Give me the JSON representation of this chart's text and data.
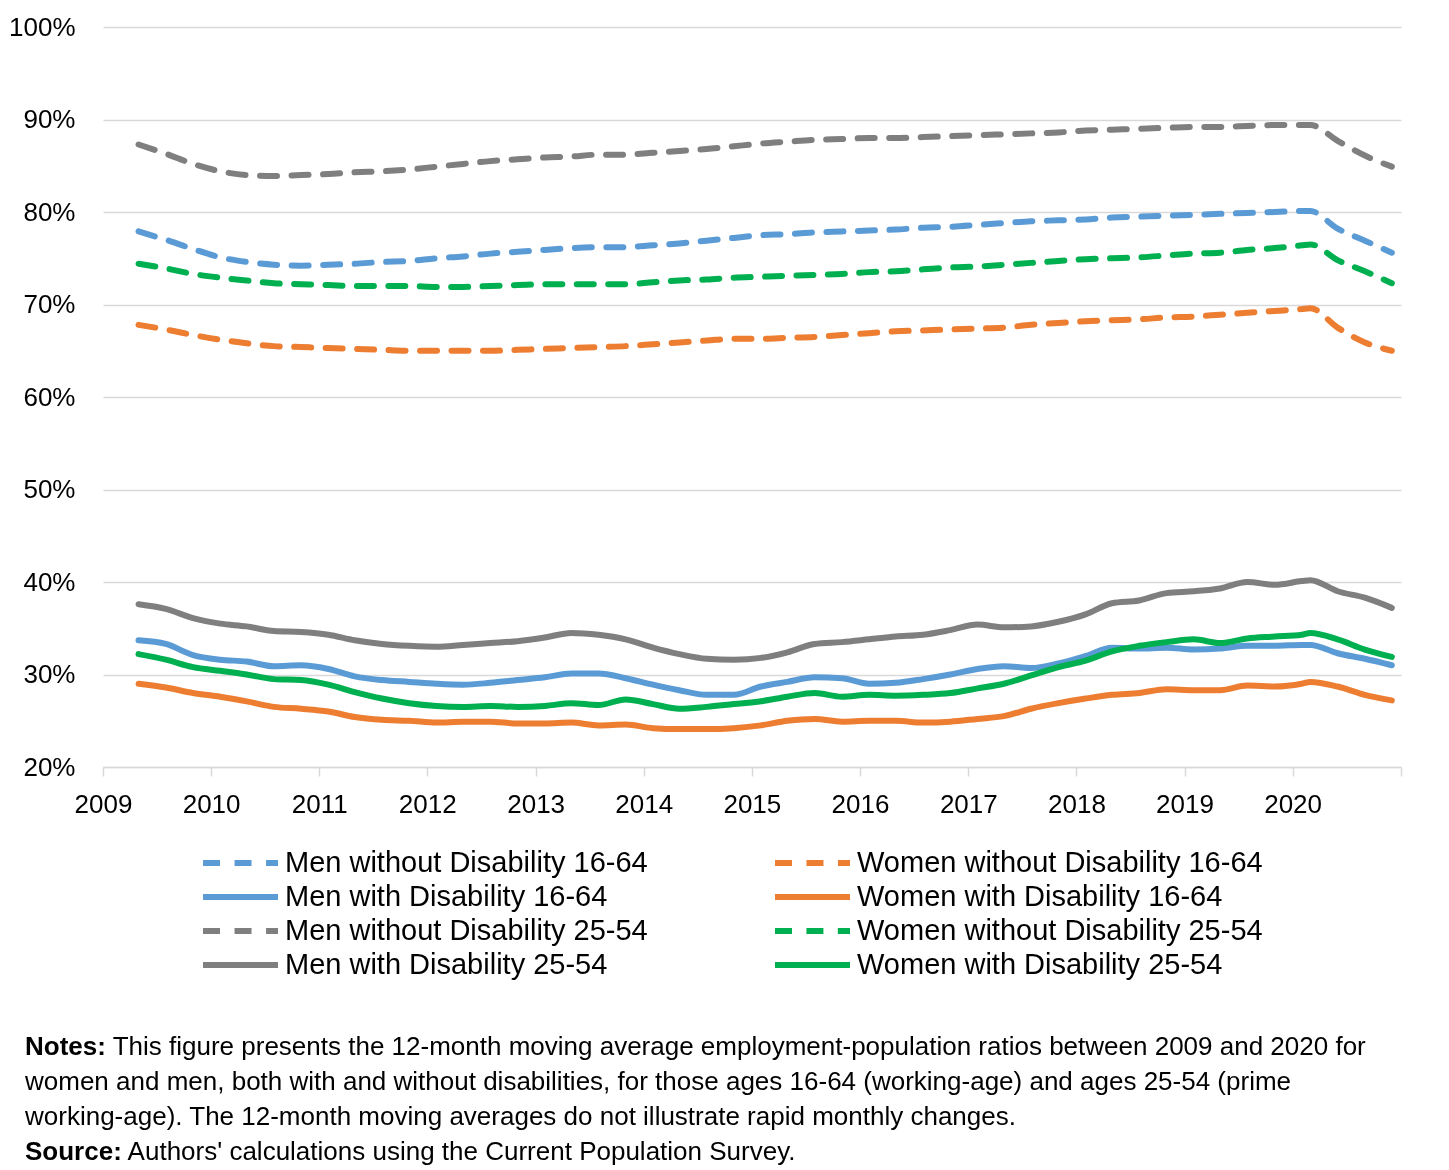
{
  "chart_data": {
    "type": "line",
    "x": [
      "2009-05",
      "2009-08",
      "2009-11",
      "2010-02",
      "2010-05",
      "2010-08",
      "2010-11",
      "2011-02",
      "2011-05",
      "2011-08",
      "2011-11",
      "2012-02",
      "2012-05",
      "2012-08",
      "2012-11",
      "2013-02",
      "2013-05",
      "2013-08",
      "2013-11",
      "2014-02",
      "2014-05",
      "2014-08",
      "2014-11",
      "2015-02",
      "2015-05",
      "2015-08",
      "2015-11",
      "2016-02",
      "2016-05",
      "2016-08",
      "2016-11",
      "2017-02",
      "2017-05",
      "2017-08",
      "2017-11",
      "2018-02",
      "2018-05",
      "2018-08",
      "2018-11",
      "2019-02",
      "2019-05",
      "2019-08",
      "2019-11",
      "2020-02",
      "2020-03",
      "2020-06",
      "2020-09",
      "2020-12"
    ],
    "series": [
      {
        "name": "Men without Disability 16-64",
        "color": "#5b9bd5",
        "line_style": "dashed",
        "values": [
          77.9,
          77.0,
          76.0,
          75.1,
          74.6,
          74.3,
          74.2,
          74.3,
          74.4,
          74.6,
          74.7,
          75.0,
          75.2,
          75.5,
          75.7,
          75.9,
          76.1,
          76.2,
          76.2,
          76.4,
          76.6,
          76.9,
          77.2,
          77.5,
          77.6,
          77.8,
          77.9,
          78.0,
          78.1,
          78.3,
          78.4,
          78.6,
          78.8,
          79.0,
          79.1,
          79.2,
          79.4,
          79.5,
          79.6,
          79.7,
          79.8,
          79.9,
          80.0,
          80.1,
          80.1,
          78.2,
          76.9,
          75.6
        ]
      },
      {
        "name": "Women without Disability 16-64",
        "color": "#ed7d31",
        "line_style": "dashed",
        "values": [
          67.8,
          67.3,
          66.7,
          66.2,
          65.8,
          65.5,
          65.4,
          65.3,
          65.2,
          65.1,
          65.0,
          65.0,
          65.0,
          65.0,
          65.1,
          65.2,
          65.3,
          65.4,
          65.5,
          65.7,
          65.9,
          66.1,
          66.3,
          66.3,
          66.4,
          66.5,
          66.7,
          66.9,
          67.1,
          67.2,
          67.3,
          67.4,
          67.5,
          67.8,
          68.0,
          68.2,
          68.3,
          68.4,
          68.6,
          68.7,
          68.9,
          69.1,
          69.3,
          69.5,
          69.6,
          67.5,
          65.9,
          65.0
        ]
      },
      {
        "name": "Men with Disability 16-64",
        "color": "#5b9bd5",
        "line_style": "solid",
        "values": [
          33.7,
          33.3,
          32.1,
          31.6,
          31.4,
          30.9,
          31.0,
          30.6,
          29.8,
          29.4,
          29.2,
          29.0,
          28.9,
          29.1,
          29.4,
          29.7,
          30.1,
          30.1,
          29.6,
          28.9,
          28.3,
          27.8,
          27.8,
          28.7,
          29.2,
          29.7,
          29.6,
          29.0,
          29.1,
          29.5,
          30.0,
          30.6,
          30.9,
          30.7,
          31.2,
          32.0,
          32.9,
          32.8,
          32.9,
          32.7,
          32.8,
          33.1,
          33.1,
          33.2,
          33.2,
          32.3,
          31.7,
          31.0
        ]
      },
      {
        "name": "Women with Disability 16-64",
        "color": "#ed7d31",
        "line_style": "solid",
        "values": [
          29.0,
          28.6,
          28.0,
          27.6,
          27.1,
          26.5,
          26.3,
          26.0,
          25.4,
          25.1,
          25.0,
          24.8,
          24.9,
          24.9,
          24.7,
          24.7,
          24.8,
          24.5,
          24.6,
          24.2,
          24.1,
          24.1,
          24.2,
          24.5,
          25.0,
          25.2,
          24.9,
          25.0,
          25.0,
          24.8,
          24.9,
          25.2,
          25.5,
          26.3,
          26.9,
          27.4,
          27.8,
          28.0,
          28.4,
          28.3,
          28.3,
          28.8,
          28.7,
          29.0,
          29.2,
          28.7,
          27.8,
          27.2
        ]
      },
      {
        "name": "Men without Disability 25-54",
        "color": "#7f7f7f",
        "line_style": "dashed",
        "values": [
          87.3,
          86.3,
          85.2,
          84.4,
          84.0,
          83.9,
          84.0,
          84.1,
          84.3,
          84.4,
          84.6,
          84.9,
          85.2,
          85.5,
          85.7,
          85.9,
          86.0,
          86.2,
          86.2,
          86.4,
          86.6,
          86.8,
          87.1,
          87.4,
          87.6,
          87.8,
          87.9,
          88.0,
          88.0,
          88.1,
          88.2,
          88.3,
          88.4,
          88.5,
          88.6,
          88.8,
          88.9,
          89.0,
          89.1,
          89.2,
          89.2,
          89.3,
          89.4,
          89.4,
          89.4,
          87.7,
          86.1,
          84.9
        ]
      },
      {
        "name": "Women without Disability 25-54",
        "color": "#00b050",
        "line_style": "dashed",
        "values": [
          74.4,
          73.9,
          73.3,
          72.9,
          72.6,
          72.3,
          72.2,
          72.1,
          72.0,
          72.0,
          72.0,
          71.9,
          71.9,
          72.0,
          72.1,
          72.2,
          72.2,
          72.2,
          72.2,
          72.4,
          72.6,
          72.7,
          72.9,
          73.0,
          73.1,
          73.2,
          73.3,
          73.5,
          73.6,
          73.8,
          74.0,
          74.1,
          74.3,
          74.5,
          74.7,
          74.9,
          75.0,
          75.1,
          75.3,
          75.5,
          75.6,
          75.9,
          76.1,
          76.4,
          76.5,
          74.8,
          73.6,
          72.3
        ]
      },
      {
        "name": "Men with Disability 25-54",
        "color": "#7f7f7f",
        "line_style": "solid",
        "values": [
          37.6,
          37.1,
          36.1,
          35.5,
          35.2,
          34.7,
          34.6,
          34.3,
          33.7,
          33.3,
          33.1,
          33.0,
          33.2,
          33.4,
          33.6,
          34.0,
          34.5,
          34.3,
          33.8,
          32.9,
          32.2,
          31.7,
          31.6,
          31.8,
          32.4,
          33.3,
          33.5,
          33.8,
          34.1,
          34.3,
          34.8,
          35.4,
          35.1,
          35.2,
          35.7,
          36.5,
          37.7,
          38.0,
          38.8,
          39.0,
          39.3,
          40.0,
          39.7,
          40.1,
          40.2,
          39.0,
          38.3,
          37.2
        ]
      },
      {
        "name": "Women with Disability 25-54",
        "color": "#00b050",
        "line_style": "solid",
        "values": [
          32.2,
          31.6,
          30.8,
          30.4,
          30.0,
          29.5,
          29.4,
          28.9,
          28.1,
          27.4,
          26.9,
          26.6,
          26.5,
          26.6,
          26.5,
          26.6,
          26.9,
          26.7,
          27.3,
          26.8,
          26.3,
          26.5,
          26.8,
          27.1,
          27.6,
          28.0,
          27.6,
          27.8,
          27.7,
          27.8,
          28.0,
          28.5,
          29.0,
          29.9,
          30.8,
          31.5,
          32.5,
          33.1,
          33.5,
          33.8,
          33.4,
          33.9,
          34.1,
          34.3,
          34.5,
          33.8,
          32.7,
          31.9
        ]
      }
    ],
    "xlim": [
      "2009",
      "2021"
    ],
    "xticks": [
      "2009",
      "2010",
      "2011",
      "2012",
      "2013",
      "2014",
      "2015",
      "2016",
      "2017",
      "2018",
      "2019",
      "2020",
      {
        "value": "2021",
        "label": null
      }
    ],
    "ylim": [
      20,
      100
    ],
    "yticks": [
      {
        "value": 20,
        "label": "20%"
      },
      {
        "value": 30,
        "label": "30%"
      },
      {
        "value": 40,
        "label": "40%"
      },
      {
        "value": 50,
        "label": "50%"
      },
      {
        "value": 60,
        "label": "60%"
      },
      {
        "value": 70,
        "label": "70%"
      },
      {
        "value": 80,
        "label": "80%"
      },
      {
        "value": 90,
        "label": "90%"
      },
      {
        "value": 100,
        "label": "100%"
      }
    ],
    "grid": "y",
    "legend": "bottom",
    "annotations": [
      "Notes: This figure presents the 12-month moving average employment-population ratios between 2009 and 2020 for women and men, both with and without disabilities, for those ages 16-64 (working-age) and ages 25-54 (prime working-age). The 12-month moving averages do not illustrate rapid monthly changes.",
      "Source: Authors' calculations using the Current Population Survey."
    ]
  }
}
